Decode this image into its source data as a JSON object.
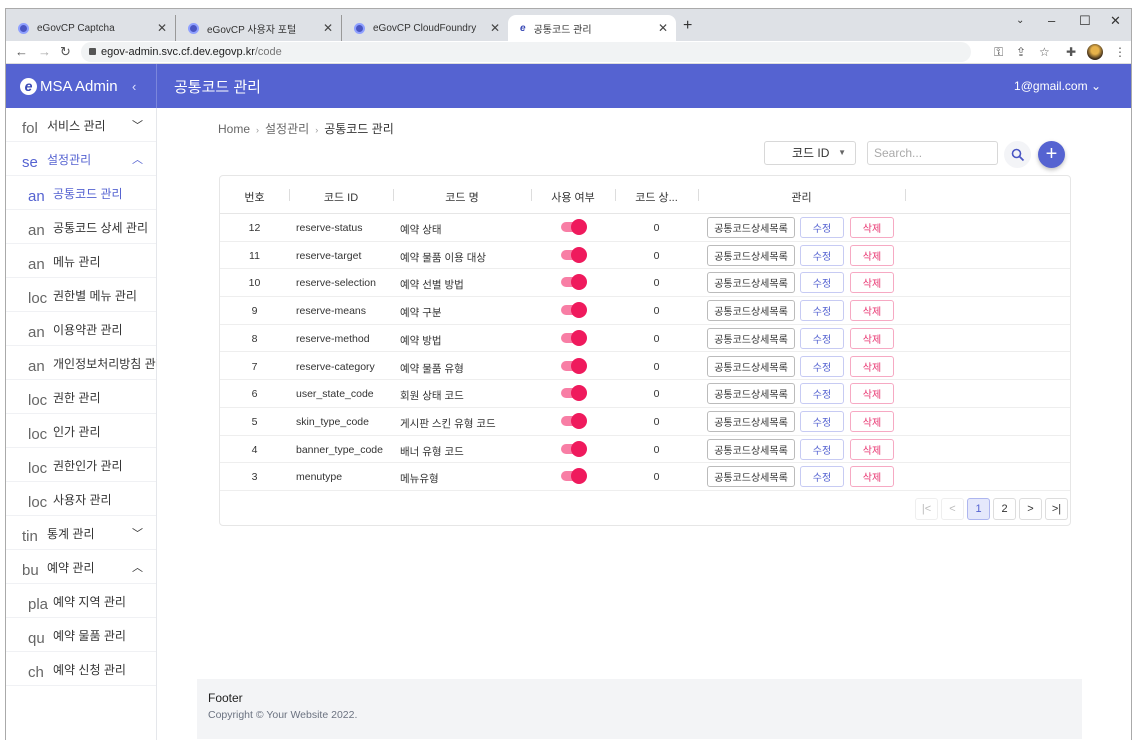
{
  "browser": {
    "tabs": [
      {
        "title": "eGovCP Captcha"
      },
      {
        "title": "eGovCP 사용자 포털"
      },
      {
        "title": "eGovCP CloudFoundry"
      },
      {
        "title": "공통코드 관리"
      }
    ],
    "url_host": "egov-admin.svc.cf.dev.egovp.kr",
    "url_path": "/code"
  },
  "app": {
    "brand": "MSA Admin",
    "brand_logo": "e",
    "title": "공통코드 관리",
    "user": "1@gmail.com",
    "accent": "#5563d1"
  },
  "sidebar": {
    "items": [
      {
        "icon": "fol",
        "label": "서비스 관리",
        "type": "parent",
        "expanded": false
      },
      {
        "icon": "se",
        "label": "설정관리",
        "type": "parent",
        "expanded": true,
        "active": true
      },
      {
        "icon": "an",
        "label": "공통코드 관리",
        "type": "child",
        "active": true
      },
      {
        "icon": "an",
        "label": "공통코드 상세 관리",
        "type": "child"
      },
      {
        "icon": "an",
        "label": "메뉴 관리",
        "type": "child"
      },
      {
        "icon": "loc",
        "label": "권한별 메뉴 관리",
        "type": "child"
      },
      {
        "icon": "an",
        "label": "이용약관 관리",
        "type": "child"
      },
      {
        "icon": "an",
        "label": "개인정보처리방침 관리",
        "type": "child"
      },
      {
        "icon": "loc",
        "label": "권한 관리",
        "type": "child"
      },
      {
        "icon": "loc",
        "label": "인가 관리",
        "type": "child"
      },
      {
        "icon": "loc",
        "label": "권한인가 관리",
        "type": "child"
      },
      {
        "icon": "loc",
        "label": "사용자 관리",
        "type": "child"
      },
      {
        "icon": "tin",
        "label": "통계 관리",
        "type": "parent",
        "expanded": false
      },
      {
        "icon": "bu",
        "label": "예약 관리",
        "type": "parent",
        "expanded": true
      },
      {
        "icon": "pla",
        "label": "예약 지역 관리",
        "type": "child"
      },
      {
        "icon": "qu",
        "label": "예약 물품 관리",
        "type": "child"
      },
      {
        "icon": "ch",
        "label": "예약 신청 관리",
        "type": "child"
      }
    ]
  },
  "breadcrumb": [
    "Home",
    "설정관리",
    "공통코드 관리"
  ],
  "filter": {
    "select_value": "코드 ID",
    "search_placeholder": "Search..."
  },
  "table": {
    "columns": [
      "번호",
      "코드 ID",
      "코드 명",
      "사용 여부",
      "코드 상...",
      "관리"
    ],
    "actions": {
      "detail": "공통코드상세목록",
      "edit": "수정",
      "delete": "삭제"
    },
    "rows": [
      {
        "no": "12",
        "id": "reserve-status",
        "name": "예약 상태",
        "use": true,
        "count": "0"
      },
      {
        "no": "11",
        "id": "reserve-target",
        "name": "예약 물품 이용 대상",
        "use": true,
        "count": "0"
      },
      {
        "no": "10",
        "id": "reserve-selection",
        "name": "예약 선별 방법",
        "use": true,
        "count": "0"
      },
      {
        "no": "9",
        "id": "reserve-means",
        "name": "예약 구분",
        "use": true,
        "count": "0"
      },
      {
        "no": "8",
        "id": "reserve-method",
        "name": "예약 방법",
        "use": true,
        "count": "0"
      },
      {
        "no": "7",
        "id": "reserve-category",
        "name": "예약 물품 유형",
        "use": true,
        "count": "0"
      },
      {
        "no": "6",
        "id": "user_state_code",
        "name": "회원 상태 코드",
        "use": true,
        "count": "0"
      },
      {
        "no": "5",
        "id": "skin_type_code",
        "name": "게시판 스킨 유형 코드",
        "use": true,
        "count": "0"
      },
      {
        "no": "4",
        "id": "banner_type_code",
        "name": "배너 유형 코드",
        "use": true,
        "count": "0"
      },
      {
        "no": "3",
        "id": "menutype",
        "name": "메뉴유형",
        "use": true,
        "count": "0"
      }
    ]
  },
  "pagination": {
    "pages": [
      "1",
      "2"
    ],
    "current": "1",
    "first": "|<",
    "prev": "<",
    "next": ">",
    "last": ">|"
  },
  "footer": {
    "title": "Footer",
    "copyright": "Copyright © Your Website 2022."
  }
}
